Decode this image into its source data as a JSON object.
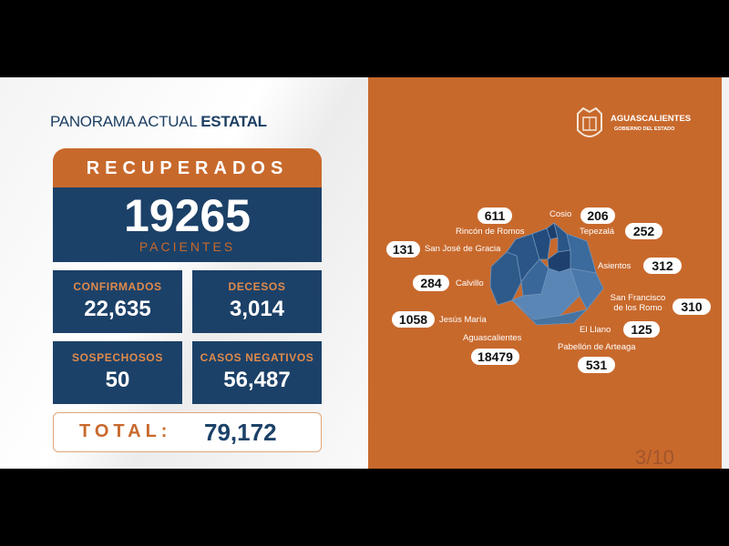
{
  "header": {
    "title_regular": "PANORAMA ACTUAL",
    "title_bold": "ESTATAL"
  },
  "recuperados": {
    "label": "RECUPERADOS",
    "value": "19265",
    "unit": "PACIENTES"
  },
  "stats": [
    {
      "label": "CONFIRMADOS",
      "value": "22,635"
    },
    {
      "label": "DECESOS",
      "value": "3,014"
    },
    {
      "label": "SOSPECHOSOS",
      "value": "50"
    },
    {
      "label": "CASOS NEGATIVOS",
      "value": "56,487"
    }
  ],
  "total": {
    "label": "TOTAL:",
    "value": "79,172"
  },
  "logo": {
    "name": "AGUASCALIENTES",
    "subtitle": "GOBIERNO DEL ESTADO"
  },
  "municipalities": [
    {
      "name": "Rincón de Romos",
      "value": "611"
    },
    {
      "name": "Cosio",
      "value": "206"
    },
    {
      "name": "Tepezalá",
      "value": "252"
    },
    {
      "name": "San José de Gracia",
      "value": "131"
    },
    {
      "name": "Asientos",
      "value": "312"
    },
    {
      "name": "Calvillo",
      "value": "284"
    },
    {
      "name": "San Francisco de los Romo",
      "value": "310"
    },
    {
      "name": "Jesús María",
      "value": "1058"
    },
    {
      "name": "El Llano",
      "value": "125"
    },
    {
      "name": "Aguascalientes",
      "value": "18479"
    },
    {
      "name": "Pabellón de Arteaga",
      "value": "531"
    }
  ],
  "colors": {
    "orange": "#c8692c",
    "navy": "#1c4168"
  },
  "page": "3/10"
}
